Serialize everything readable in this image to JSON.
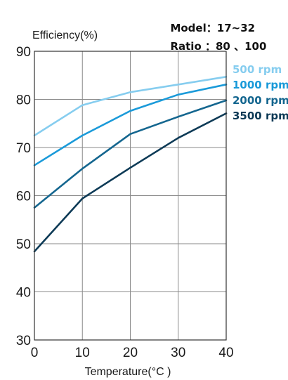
{
  "header": {
    "model_label": "Model",
    "model_value": "17~32",
    "ratio_label": "Ratio",
    "ratio_value": "80 、100"
  },
  "chart_data": {
    "type": "line",
    "ylabel": "Efficiency(%)",
    "xlabel": "Temperature(°C )",
    "xlim": [
      0,
      40
    ],
    "ylim": [
      30,
      90
    ],
    "x_ticks": [
      "0",
      "10",
      "20",
      "30",
      "40"
    ],
    "y_ticks": [
      "30",
      "40",
      "50",
      "60",
      "70",
      "80",
      "90"
    ],
    "grid": true,
    "legend_placement": "right",
    "x": [
      0,
      10,
      20,
      30,
      40
    ],
    "series": [
      {
        "name": "500 rpm",
        "color": "#86cdef",
        "values": [
          72.5,
          78.8,
          81.5,
          83.1,
          84.7
        ]
      },
      {
        "name": "1000 rpm",
        "color": "#1a9ad9",
        "values": [
          66.3,
          72.5,
          77.6,
          81.0,
          83.1
        ]
      },
      {
        "name": "2000 rpm",
        "color": "#14668f",
        "values": [
          57.5,
          65.6,
          72.8,
          76.4,
          79.8
        ]
      },
      {
        "name": "3500 rpm",
        "color": "#0d3a56",
        "values": [
          48.4,
          59.4,
          65.8,
          72.0,
          77.1
        ]
      }
    ]
  }
}
